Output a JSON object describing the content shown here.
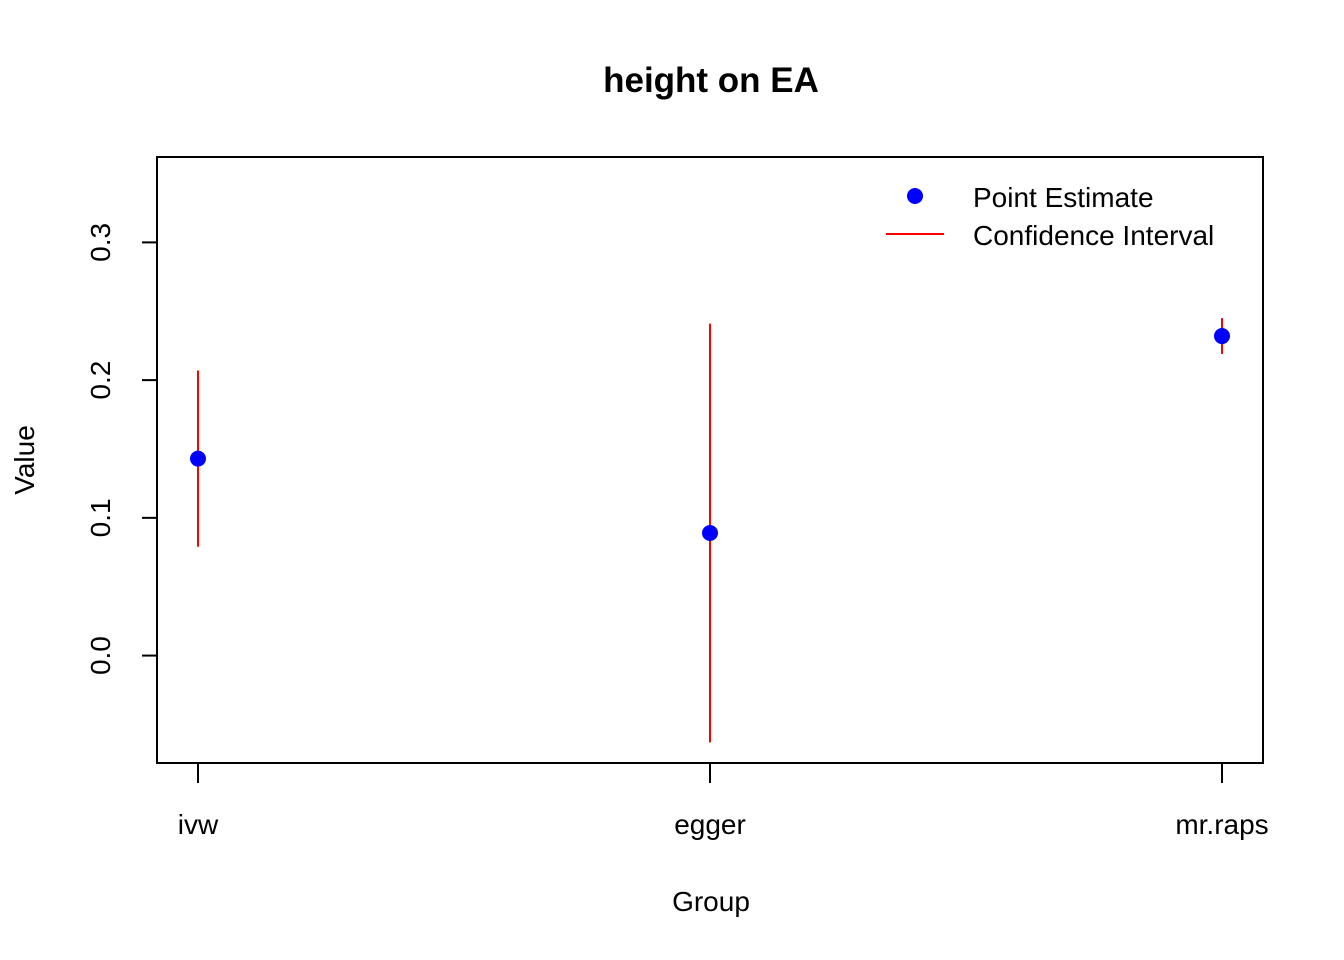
{
  "chart_data": {
    "type": "scatter",
    "title": "height on EA",
    "xlabel": "Group",
    "ylabel": "Value",
    "categories": [
      "ivw",
      "egger",
      "mr.raps"
    ],
    "ylim": [
      -0.078,
      0.362
    ],
    "yticks": [
      0.0,
      0.1,
      0.2,
      0.3
    ],
    "ytick_labels": [
      "0.0",
      "0.1",
      "0.2",
      "0.3"
    ],
    "series": [
      {
        "name": "Point Estimate",
        "color": "#0000ff",
        "values": [
          0.143,
          0.089,
          0.232
        ]
      },
      {
        "name": "Confidence Interval",
        "color": "#ff0000",
        "lower": [
          0.079,
          -0.063,
          0.219
        ],
        "upper": [
          0.207,
          0.241,
          0.245
        ]
      }
    ],
    "legend": {
      "placement": "top-right"
    },
    "grid": false
  }
}
